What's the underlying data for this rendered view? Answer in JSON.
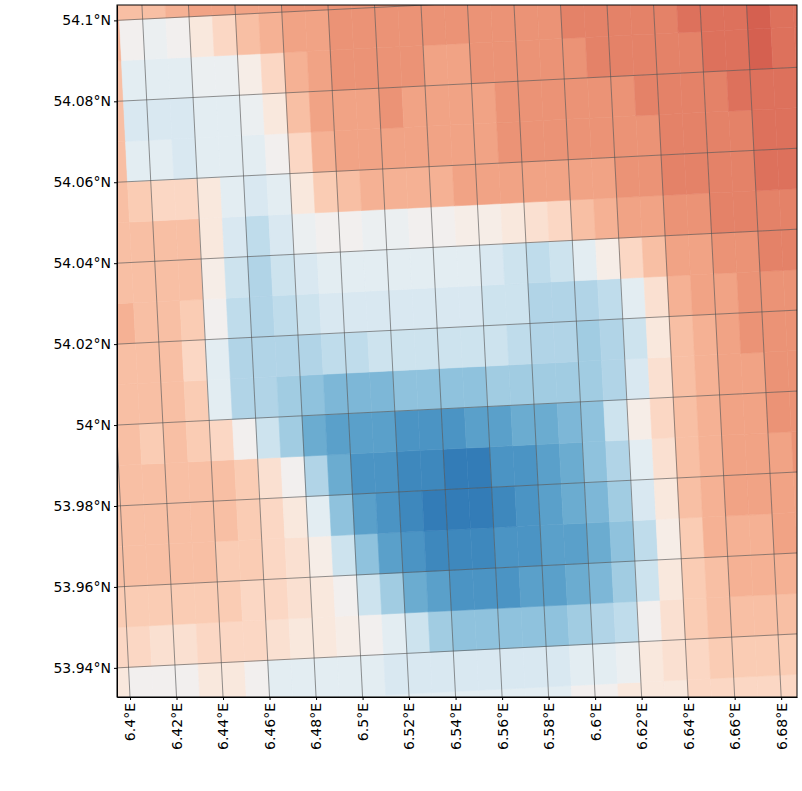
{
  "chart_data": {
    "type": "heatmap",
    "grid": true,
    "xlim": [
      6.3944,
      6.6868
    ],
    "ylim": [
      53.9328,
      54.1038
    ],
    "zlim": [
      -1,
      1
    ],
    "xticks": [
      {
        "value": 6.4,
        "label": "6.4°E"
      },
      {
        "value": 6.42,
        "label": "6.42°E"
      },
      {
        "value": 6.44,
        "label": "6.44°E"
      },
      {
        "value": 6.46,
        "label": "6.46°E"
      },
      {
        "value": 6.48,
        "label": "6.48°E"
      },
      {
        "value": 6.5,
        "label": "6.5°E"
      },
      {
        "value": 6.52,
        "label": "6.52°E"
      },
      {
        "value": 6.54,
        "label": "6.54°E"
      },
      {
        "value": 6.56,
        "label": "6.56°E"
      },
      {
        "value": 6.58,
        "label": "6.58°E"
      },
      {
        "value": 6.6,
        "label": "6.6°E"
      },
      {
        "value": 6.62,
        "label": "6.62°E"
      },
      {
        "value": 6.64,
        "label": "6.64°E"
      },
      {
        "value": 6.66,
        "label": "6.66°E"
      },
      {
        "value": 6.68,
        "label": "6.68°E"
      }
    ],
    "yticks": [
      {
        "value": 53.94,
        "label": "53.94°N"
      },
      {
        "value": 53.96,
        "label": "53.96°N"
      },
      {
        "value": 53.98,
        "label": "53.98°N"
      },
      {
        "value": 54,
        "label": "54°N"
      },
      {
        "value": 54.02,
        "label": "54.02°N"
      },
      {
        "value": 54.04,
        "label": "54.04°N"
      },
      {
        "value": 54.06,
        "label": "54.06°N"
      },
      {
        "value": 54.08,
        "label": "54.08°N"
      },
      {
        "value": 54.1,
        "label": "54.1°N"
      }
    ],
    "x_edges": [
      6.39,
      6.4,
      6.41,
      6.42,
      6.43,
      6.44,
      6.45,
      6.46,
      6.47,
      6.48,
      6.49,
      6.5,
      6.51,
      6.52,
      6.53,
      6.54,
      6.55,
      6.56,
      6.57,
      6.58,
      6.59,
      6.6,
      6.61,
      6.62,
      6.63,
      6.64,
      6.65,
      6.66,
      6.67,
      6.68,
      6.69,
      6.7,
      6.71
    ],
    "y_edges": [
      53.92,
      53.93,
      53.94,
      53.95,
      53.96,
      53.97,
      53.98,
      53.99,
      54.0,
      54.01,
      54.02,
      54.03,
      54.04,
      54.05,
      54.06,
      54.07,
      54.08,
      54.09,
      54.1,
      54.11
    ],
    "values": [
      [
        0.1,
        0.1,
        0.1,
        0.0,
        0.0,
        0.0,
        -0.1,
        -0.1,
        -0.1,
        -0.1,
        -0.1,
        -0.1,
        -0.1,
        -0.1,
        -0.1,
        -0.1,
        -0.1,
        -0.1,
        -0.1,
        -0.1,
        0.0,
        0.0,
        0.1,
        0.1,
        0.1,
        0.2,
        0.2,
        0.2,
        0.2,
        0.2,
        0.2,
        0.2
      ],
      [
        0.1,
        0.0,
        0.0,
        0.0,
        0.1,
        0.1,
        0.0,
        -0.1,
        -0.1,
        -0.1,
        -0.1,
        -0.1,
        -0.15,
        -0.15,
        -0.15,
        -0.15,
        -0.15,
        -0.15,
        -0.15,
        -0.15,
        -0.1,
        -0.1,
        -0.05,
        0.1,
        0.15,
        0.2,
        0.25,
        0.25,
        0.25,
        0.25,
        0.3,
        0.3
      ],
      [
        0.2,
        0.2,
        0.15,
        0.15,
        0.2,
        0.2,
        0.2,
        0.15,
        0.1,
        0.1,
        0.05,
        0.0,
        -0.1,
        -0.2,
        -0.35,
        -0.4,
        -0.4,
        -0.4,
        -0.4,
        -0.4,
        -0.35,
        -0.3,
        -0.25,
        0.0,
        0.15,
        0.25,
        0.3,
        0.3,
        0.3,
        0.3,
        0.3,
        0.3
      ],
      [
        0.25,
        0.25,
        0.25,
        0.25,
        0.25,
        0.25,
        0.2,
        0.2,
        0.15,
        0.1,
        0.0,
        -0.2,
        -0.35,
        -0.5,
        -0.55,
        -0.6,
        -0.6,
        -0.6,
        -0.55,
        -0.55,
        -0.5,
        -0.45,
        -0.35,
        -0.2,
        0.1,
        0.25,
        0.3,
        0.35,
        0.35,
        0.35,
        0.35,
        0.35
      ],
      [
        0.3,
        0.3,
        0.3,
        0.3,
        0.3,
        0.25,
        0.25,
        0.2,
        0.15,
        0.05,
        -0.2,
        -0.4,
        -0.55,
        -0.6,
        -0.65,
        -0.65,
        -0.65,
        -0.6,
        -0.6,
        -0.55,
        -0.55,
        -0.5,
        -0.4,
        -0.25,
        0.05,
        0.25,
        0.35,
        0.35,
        0.35,
        0.4,
        0.4,
        0.4
      ],
      [
        0.3,
        0.3,
        0.3,
        0.3,
        0.3,
        0.3,
        0.25,
        0.2,
        0.1,
        -0.1,
        -0.4,
        -0.55,
        -0.6,
        -0.65,
        -0.7,
        -0.7,
        -0.7,
        -0.65,
        -0.6,
        -0.55,
        -0.5,
        -0.45,
        -0.35,
        -0.15,
        0.1,
        0.3,
        0.35,
        0.4,
        0.4,
        0.4,
        0.4,
        0.4
      ],
      [
        0.3,
        0.3,
        0.3,
        0.3,
        0.3,
        0.3,
        0.25,
        0.15,
        0.0,
        -0.3,
        -0.5,
        -0.6,
        -0.6,
        -0.65,
        -0.65,
        -0.7,
        -0.7,
        -0.6,
        -0.6,
        -0.55,
        -0.5,
        -0.4,
        -0.3,
        -0.1,
        0.15,
        0.3,
        0.35,
        0.4,
        0.4,
        0.4,
        0.45,
        0.45
      ],
      [
        0.3,
        0.3,
        0.25,
        0.3,
        0.25,
        0.2,
        0.0,
        -0.2,
        -0.35,
        -0.5,
        -0.55,
        -0.55,
        -0.55,
        -0.6,
        -0.6,
        -0.6,
        -0.55,
        -0.55,
        -0.5,
        -0.5,
        -0.45,
        -0.4,
        -0.2,
        0.05,
        0.2,
        0.3,
        0.35,
        0.4,
        0.4,
        0.45,
        0.45,
        0.45
      ],
      [
        0.3,
        0.3,
        0.3,
        0.3,
        0.25,
        -0.1,
        -0.3,
        -0.3,
        -0.35,
        -0.4,
        -0.45,
        -0.45,
        -0.45,
        -0.4,
        -0.4,
        -0.4,
        -0.4,
        -0.35,
        -0.35,
        -0.35,
        -0.35,
        -0.35,
        -0.3,
        -0.15,
        0.15,
        0.3,
        0.35,
        0.4,
        0.4,
        0.45,
        0.45,
        0.45
      ],
      [
        0.3,
        0.3,
        0.3,
        0.3,
        0.2,
        -0.1,
        -0.3,
        -0.3,
        -0.3,
        -0.3,
        -0.25,
        -0.25,
        -0.2,
        -0.2,
        -0.2,
        -0.2,
        -0.2,
        -0.2,
        -0.25,
        -0.3,
        -0.3,
        -0.35,
        -0.3,
        -0.2,
        0.1,
        0.3,
        0.35,
        0.4,
        0.45,
        0.45,
        0.45,
        0.45
      ],
      [
        0.3,
        0.35,
        0.3,
        0.3,
        0.25,
        0.0,
        -0.25,
        -0.3,
        -0.25,
        -0.2,
        -0.15,
        -0.15,
        -0.15,
        -0.15,
        -0.15,
        -0.15,
        -0.15,
        -0.2,
        -0.2,
        -0.3,
        -0.3,
        -0.3,
        -0.25,
        -0.1,
        0.15,
        0.35,
        0.4,
        0.4,
        0.45,
        0.45,
        0.45,
        0.45
      ],
      [
        0.3,
        0.3,
        0.3,
        0.3,
        0.3,
        0.05,
        -0.2,
        -0.3,
        -0.2,
        -0.15,
        -0.1,
        -0.1,
        -0.1,
        -0.1,
        -0.1,
        -0.1,
        -0.1,
        -0.15,
        -0.2,
        -0.25,
        -0.2,
        -0.1,
        0.05,
        0.2,
        0.3,
        0.4,
        0.4,
        0.45,
        0.45,
        0.5,
        0.5,
        0.5
      ],
      [
        0.3,
        0.3,
        0.3,
        0.3,
        0.3,
        0.1,
        -0.15,
        -0.25,
        -0.15,
        -0.05,
        0.0,
        0.0,
        -0.05,
        -0.05,
        0.0,
        0.0,
        0.05,
        0.05,
        0.1,
        0.15,
        0.2,
        0.3,
        0.35,
        0.4,
        0.4,
        0.45,
        0.45,
        0.5,
        0.5,
        0.5,
        0.5,
        0.5
      ],
      [
        0.3,
        0.3,
        0.25,
        0.2,
        0.2,
        0.1,
        -0.1,
        -0.15,
        -0.1,
        0.1,
        0.25,
        0.3,
        0.35,
        0.35,
        0.35,
        0.35,
        0.4,
        0.4,
        0.4,
        0.4,
        0.4,
        0.4,
        0.4,
        0.45,
        0.45,
        0.5,
        0.5,
        0.5,
        0.5,
        0.55,
        0.55,
        0.55
      ],
      [
        0.3,
        0.3,
        -0.1,
        -0.1,
        -0.15,
        -0.1,
        -0.1,
        -0.1,
        0.0,
        0.2,
        0.35,
        0.4,
        0.4,
        0.4,
        0.4,
        0.4,
        0.4,
        0.4,
        0.45,
        0.45,
        0.45,
        0.45,
        0.45,
        0.45,
        0.45,
        0.5,
        0.5,
        0.5,
        0.5,
        0.55,
        0.55,
        0.55
      ],
      [
        0.35,
        0.3,
        -0.15,
        -0.15,
        -0.15,
        -0.1,
        -0.1,
        -0.05,
        0.1,
        0.3,
        0.4,
        0.4,
        0.4,
        0.45,
        0.4,
        0.4,
        0.4,
        0.4,
        0.45,
        0.45,
        0.45,
        0.45,
        0.45,
        0.45,
        0.5,
        0.5,
        0.5,
        0.5,
        0.55,
        0.55,
        0.55,
        0.55
      ],
      [
        0.35,
        0.3,
        -0.1,
        -0.1,
        -0.1,
        -0.05,
        -0.05,
        0.05,
        0.2,
        0.35,
        0.4,
        0.45,
        0.45,
        0.45,
        0.45,
        0.4,
        0.4,
        0.45,
        0.45,
        0.45,
        0.45,
        0.45,
        0.5,
        0.5,
        0.5,
        0.5,
        0.5,
        0.55,
        0.55,
        0.6,
        0.55,
        0.55
      ],
      [
        0.35,
        0.35,
        0.0,
        -0.05,
        0.0,
        0.1,
        0.2,
        0.3,
        0.35,
        0.4,
        0.4,
        0.45,
        0.45,
        0.45,
        0.45,
        0.45,
        0.45,
        0.45,
        0.45,
        0.45,
        0.45,
        0.5,
        0.5,
        0.5,
        0.5,
        0.5,
        0.55,
        0.55,
        0.55,
        0.6,
        0.55,
        0.55
      ],
      [
        0.35,
        0.35,
        0.3,
        0.3,
        0.35,
        0.4,
        0.4,
        0.4,
        0.4,
        0.45,
        0.45,
        0.45,
        0.45,
        0.45,
        0.45,
        0.45,
        0.45,
        0.45,
        0.45,
        0.45,
        0.45,
        0.5,
        0.5,
        0.5,
        0.5,
        0.5,
        0.5,
        0.5,
        0.5,
        0.5,
        0.5,
        0.5
      ]
    ]
  }
}
